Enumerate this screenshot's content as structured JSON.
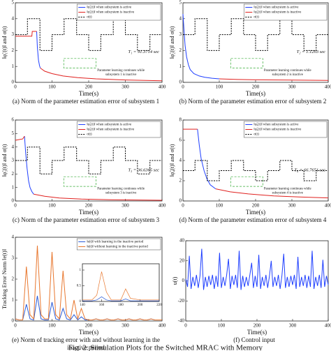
{
  "chart_data": [
    {
      "type": "line",
      "caption": [
        "(a) Norm of the parameter estimation error of subsystem 1"
      ],
      "xlabel": "Time(s)",
      "ylabel": "‖φ̃₁(t)‖ and σ(t)",
      "xlim": [
        0,
        400
      ],
      "xticks": [
        0,
        100,
        200,
        300,
        400
      ],
      "ylim": [
        0,
        5
      ],
      "yticks": [
        0,
        1,
        2,
        3,
        4,
        5
      ],
      "annotation": "T₁ = 91.3714 sec",
      "note": [
        "Parameter learning continues while",
        "subsystem 1 is inactive"
      ],
      "series": [
        {
          "name": "‖φ̃₁(t)‖ when subsystem is active",
          "color": "#1f3fff",
          "x": [
            58,
            60,
            63,
            66,
            68
          ],
          "values": [
            3.2,
            2.2,
            1.4,
            1.05,
            0.9
          ]
        },
        {
          "name": "‖φ̃₁(t)‖ when subsystem is inactive",
          "color": "#e0201e",
          "x": [
            0,
            45,
            46,
            58,
            60,
            68,
            80,
            100,
            130,
            170,
            220,
            300,
            400
          ],
          "values": [
            2.9,
            2.9,
            3.2,
            3.2,
            null,
            0.9,
            0.7,
            0.55,
            0.4,
            0.3,
            0.22,
            0.15,
            0.1
          ]
        },
        {
          "name": "σ(t)",
          "color": "#000000",
          "dash": true,
          "x": [
            0,
            33,
            33,
            67,
            67,
            100,
            100,
            133,
            133,
            167,
            167,
            200,
            200,
            233,
            233,
            267,
            267,
            300,
            300,
            333,
            333,
            367,
            367,
            400
          ],
          "values": [
            3,
            3,
            4,
            4,
            2,
            2,
            3,
            3,
            4,
            4,
            3,
            3,
            2,
            2,
            3,
            3,
            4,
            4,
            3,
            3,
            2,
            2,
            3,
            3
          ]
        }
      ]
    },
    {
      "type": "line",
      "caption": [
        "(b) Norm of the parameter estimation error of subsystem 2"
      ],
      "xlabel": "Time(s)",
      "ylabel": "‖φ̃₂(t)‖ and σ(t)",
      "xlim": [
        0,
        400
      ],
      "xticks": [
        0,
        100,
        200,
        300,
        400
      ],
      "ylim": [
        0,
        5
      ],
      "yticks": [
        0,
        1,
        2,
        3,
        4,
        5
      ],
      "annotation": "T₂ = 1.1203 sec",
      "note": [
        "Parameter learning continues while",
        "subsystem 2 is inactive"
      ],
      "series": [
        {
          "name": "‖φ̃₂(t)‖ when subsystem is active",
          "color": "#1f3fff",
          "x": [
            0,
            3,
            6,
            10,
            15,
            20,
            30,
            45,
            60,
            80,
            100
          ],
          "values": [
            4.3,
            3.2,
            2.3,
            1.6,
            1.1,
            0.8,
            0.55,
            0.4,
            0.32,
            0.26,
            0.22
          ]
        },
        {
          "name": "‖φ̃₂(t)‖ when subsystem is inactive",
          "color": "#e0201e",
          "x": [
            100,
            150,
            200,
            300,
            400
          ],
          "values": [
            0.22,
            0.18,
            0.16,
            0.14,
            0.12
          ]
        },
        {
          "name": "σ(t)",
          "color": "#000000",
          "dash": true,
          "x": [
            0,
            33,
            33,
            67,
            67,
            100,
            100,
            133,
            133,
            167,
            167,
            200,
            200,
            233,
            233,
            267,
            267,
            300,
            300,
            333,
            333,
            367,
            367,
            400
          ],
          "values": [
            3,
            3,
            4,
            4,
            2,
            2,
            3,
            3,
            4,
            4,
            3,
            3,
            2,
            2,
            3,
            3,
            4,
            4,
            3,
            3,
            2,
            2,
            3,
            3
          ]
        }
      ]
    },
    {
      "type": "line",
      "caption": [
        "(c) Norm of the parameter estimation error of subsystem 3"
      ],
      "xlabel": "Time(s)",
      "ylabel": "‖φ̃₃(t)‖ and σ(t)",
      "xlim": [
        0,
        400
      ],
      "xticks": [
        0,
        100,
        200,
        300,
        400
      ],
      "ylim": [
        0,
        6
      ],
      "yticks": [
        0,
        1,
        2,
        3,
        4,
        5,
        6
      ],
      "annotation": "T₃ = 36.6365 sec",
      "note": [
        "Parameter learning continues while",
        "subsystem 3 is inactive"
      ],
      "series": [
        {
          "name": "‖φ̃₃(t)‖ when subsystem is active",
          "color": "#1f3fff",
          "x": [
            25,
            28,
            32,
            36,
            40,
            45,
            50
          ],
          "values": [
            4.8,
            3.6,
            2.4,
            1.5,
            1.0,
            0.7,
            0.5
          ]
        },
        {
          "name": "‖φ̃₃(t)‖ when subsystem is inactive",
          "color": "#e0201e",
          "x": [
            0,
            20,
            25,
            null,
            50,
            80,
            120,
            180,
            260,
            400
          ],
          "values": [
            4.5,
            4.6,
            4.8,
            null,
            0.5,
            0.35,
            0.22,
            0.14,
            0.09,
            0.05
          ]
        },
        {
          "name": "σ(t)",
          "color": "#000000",
          "dash": true,
          "x": [
            0,
            33,
            33,
            67,
            67,
            100,
            100,
            133,
            133,
            167,
            167,
            200,
            200,
            233,
            233,
            267,
            267,
            300,
            300,
            333,
            333,
            367,
            367,
            400
          ],
          "values": [
            3,
            3,
            4,
            4,
            2,
            2,
            3,
            3,
            4,
            4,
            3,
            3,
            2,
            2,
            3,
            3,
            4,
            4,
            3,
            3,
            2,
            2,
            3,
            3
          ]
        }
      ]
    },
    {
      "type": "line",
      "caption": [
        "(d) Norm of the parameter estimation error of subsystem 4"
      ],
      "xlabel": "Time(s)",
      "ylabel": "‖φ̃₄(t)‖ and σ(t)",
      "xlim": [
        0,
        400
      ],
      "xticks": [
        0,
        100,
        200,
        300,
        400
      ],
      "ylim": [
        0,
        8
      ],
      "yticks": [
        0,
        2,
        4,
        6,
        8
      ],
      "annotation": "T₄ = 66.7651 sec",
      "note": [
        "Parameter learning continues while",
        "subsystem 4 is inactive"
      ],
      "series": [
        {
          "name": "‖φ̃₄(t)‖ when subsystem is active",
          "color": "#1f3fff",
          "x": [
            40,
            45,
            50,
            58,
            66,
            75,
            90
          ],
          "values": [
            7.1,
            5.5,
            4.2,
            3.0,
            2.2,
            1.6,
            1.2
          ]
        },
        {
          "name": "‖φ̃₄(t)‖ when subsystem is inactive",
          "color": "#e0201e",
          "x": [
            0,
            40,
            null,
            90,
            130,
            180,
            250,
            320,
            400
          ],
          "values": [
            7.1,
            7.1,
            null,
            1.2,
            0.9,
            0.7,
            0.5,
            0.4,
            0.3
          ]
        },
        {
          "name": "σ(t)",
          "color": "#000000",
          "dash": true,
          "x": [
            0,
            33,
            33,
            67,
            67,
            100,
            100,
            133,
            133,
            167,
            167,
            200,
            200,
            233,
            233,
            267,
            267,
            300,
            300,
            333,
            333,
            367,
            367,
            400
          ],
          "values": [
            3,
            3,
            4,
            4,
            2,
            2,
            3,
            3,
            4,
            4,
            3,
            3,
            2,
            2,
            3,
            3,
            4,
            4,
            3,
            3,
            2,
            2,
            3,
            3
          ]
        }
      ]
    },
    {
      "type": "line",
      "caption": [
        "(e) Norm of tracking error with and without learning in the",
        "inactive period"
      ],
      "xlabel": "Time(s)",
      "ylabel": "Tracking Error Norm ‖e(t)‖",
      "xlim": [
        0,
        400
      ],
      "xticks": [
        0,
        100,
        200,
        300,
        400
      ],
      "ylim": [
        0,
        4
      ],
      "yticks": [
        0,
        1,
        2,
        3,
        4
      ],
      "series": [
        {
          "name": "‖e(t)‖ with learning in the inactive period",
          "color": "#2a5bd7",
          "x": [
            0,
            10,
            20,
            30,
            40,
            50,
            60,
            70,
            80,
            90,
            100,
            110,
            120,
            130,
            140,
            150,
            160,
            170,
            180,
            190,
            200,
            210,
            220,
            230,
            240,
            250,
            260,
            270,
            280,
            290,
            300,
            310,
            320,
            330,
            340,
            350,
            360,
            370,
            380,
            390,
            400
          ],
          "values": [
            0.1,
            0.05,
            0.05,
            0.8,
            0.1,
            0.05,
            1.2,
            0.1,
            0.05,
            0.05,
            0.9,
            0.1,
            0.05,
            0.6,
            0.1,
            0.05,
            0.3,
            0.05,
            0.2,
            0.05,
            0.05,
            0.05,
            0.1,
            0.05,
            0.05,
            0.1,
            0.05,
            0.05,
            0.1,
            0.05,
            0.05,
            0.1,
            0.05,
            0.05,
            0.1,
            0.05,
            0.05,
            0.1,
            0.05,
            0.05,
            0.05
          ]
        },
        {
          "name": "‖e(t)‖ without learning in the inactive period",
          "color": "#e8772e",
          "x": [
            0,
            10,
            20,
            30,
            40,
            50,
            60,
            70,
            80,
            90,
            100,
            110,
            120,
            130,
            140,
            150,
            160,
            170,
            180,
            190,
            200,
            210,
            220,
            230,
            240,
            250,
            260,
            270,
            280,
            290,
            300,
            310,
            320,
            330,
            340,
            350,
            360,
            370,
            380,
            390,
            400
          ],
          "values": [
            0.1,
            0.05,
            0.05,
            2.6,
            0.3,
            0.1,
            3.6,
            0.3,
            0.1,
            0.1,
            3.3,
            0.3,
            0.1,
            2.4,
            0.3,
            0.1,
            1.0,
            0.1,
            0.6,
            0.1,
            0.05,
            0.05,
            0.1,
            0.05,
            0.05,
            0.1,
            0.05,
            0.05,
            0.1,
            0.05,
            0.05,
            0.1,
            0.05,
            0.05,
            0.1,
            0.05,
            0.05,
            0.1,
            0.05,
            0.05,
            0.05
          ]
        }
      ]
    },
    {
      "type": "line",
      "caption": [
        "(f) Control input"
      ],
      "xlabel": "Time(s)",
      "ylabel": "u(t)",
      "xlim": [
        0,
        400
      ],
      "xticks": [
        0,
        100,
        200,
        300,
        400
      ],
      "ylim": [
        -40,
        40
      ],
      "yticks": [
        -40,
        -20,
        0,
        20,
        40
      ],
      "series": [
        {
          "color": "#1f3fff",
          "x": [
            0,
            5,
            10,
            15,
            20,
            25,
            30,
            35,
            40,
            45,
            50,
            55,
            60,
            65,
            70,
            75,
            80,
            85,
            90,
            95,
            100,
            105,
            110,
            115,
            120,
            125,
            130,
            135,
            140,
            145,
            150,
            155,
            160,
            165,
            170,
            175,
            180,
            185,
            190,
            195,
            200,
            205,
            210,
            215,
            220,
            225,
            230,
            235,
            240,
            245,
            250,
            255,
            260,
            265,
            270,
            275,
            280,
            285,
            290,
            295,
            300,
            305,
            310,
            315,
            320,
            325,
            330,
            335,
            340,
            345,
            350,
            355,
            360,
            365,
            370,
            375,
            380,
            385,
            390,
            395,
            400
          ],
          "values": [
            2,
            -6,
            25,
            -8,
            4,
            -5,
            6,
            -7,
            5,
            32,
            -9,
            4,
            -6,
            5,
            -4,
            6,
            -8,
            5,
            -6,
            28,
            -7,
            4,
            -5,
            6,
            22,
            -8,
            5,
            -4,
            6,
            -7,
            30,
            -9,
            5,
            -6,
            4,
            -5,
            6,
            18,
            -7,
            5,
            -6,
            26,
            -8,
            4,
            -5,
            6,
            -7,
            5,
            20,
            -6,
            4,
            -5,
            6,
            -8,
            5,
            27,
            -7,
            4,
            -6,
            5,
            -4,
            6,
            -8,
            24,
            -6,
            4,
            -5,
            6,
            -7,
            5,
            -6,
            30,
            -8,
            4,
            -5,
            6,
            -7,
            21,
            -6,
            5,
            -4
          ]
        }
      ]
    },
    {
      "type": "line",
      "xlim": [
        140,
        220
      ],
      "xticks": [
        140,
        160,
        180,
        200,
        220
      ],
      "ylim": [
        0,
        1.2
      ],
      "yticks": [
        0,
        0.5,
        1
      ],
      "series": [
        {
          "name": "‖e(t)‖",
          "color": "#2a5bd7",
          "x": [
            140,
            150,
            155,
            160,
            165,
            170,
            180,
            185,
            190,
            200,
            210,
            220
          ],
          "values": [
            0.02,
            0.02,
            0.05,
            0.15,
            0.05,
            0.02,
            0.02,
            0.08,
            0.02,
            0.02,
            0.02,
            0.02
          ]
        },
        {
          "name": "without learning",
          "color": "#e8772e",
          "x": [
            140,
            150,
            155,
            160,
            165,
            170,
            180,
            185,
            190,
            200,
            210,
            220
          ],
          "values": [
            0.05,
            0.05,
            0.2,
            0.95,
            0.3,
            0.05,
            0.05,
            0.4,
            0.1,
            0.05,
            0.05,
            0.05
          ]
        }
      ]
    }
  ],
  "figure_caption": "Fig. 2: Simulation Plots for the Switched MRAC with Memory"
}
